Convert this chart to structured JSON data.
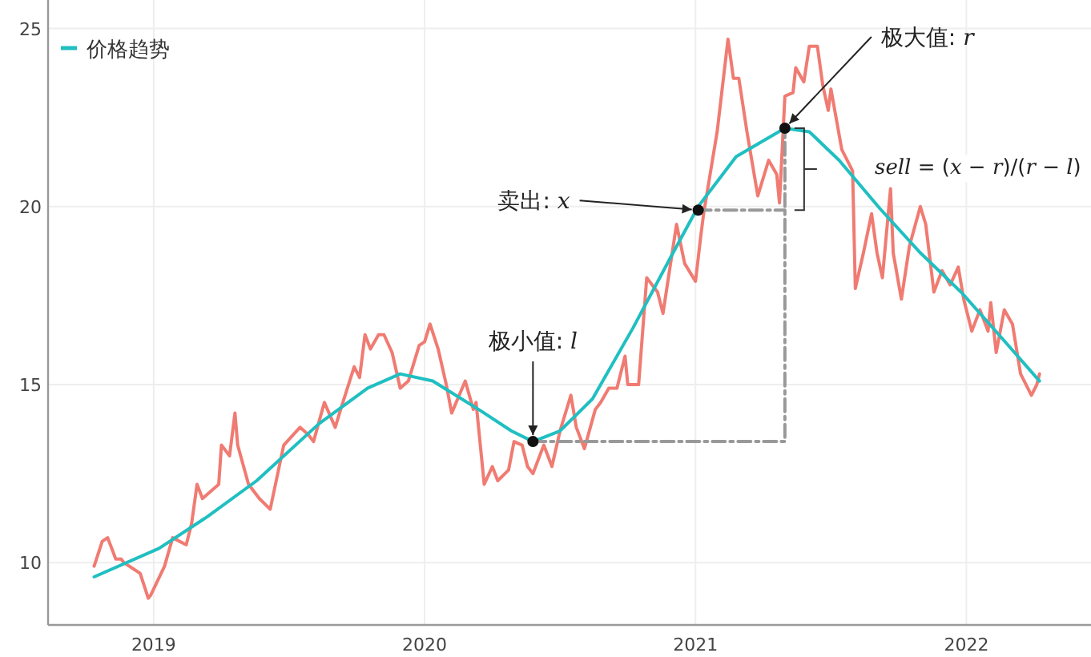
{
  "chart_data": {
    "type": "line",
    "xlim": [
      2018.61,
      2022.46
    ],
    "ylim": [
      8.25,
      25.8
    ],
    "xticks": [
      2019,
      2020,
      2021,
      2022
    ],
    "yticks": [
      10,
      15,
      20,
      25
    ],
    "grid": true,
    "legend": "top left",
    "series": [
      {
        "color": "#f07b72",
        "x": [
          2018.78,
          2018.81,
          2018.83,
          2018.86,
          2018.88,
          2018.89,
          2018.95,
          2018.98,
          2018.99,
          2019.04,
          2019.07,
          2019.12,
          2019.14,
          2019.16,
          2019.18,
          2019.24,
          2019.25,
          2019.28,
          2019.3,
          2019.31,
          2019.35,
          2019.39,
          2019.43,
          2019.48,
          2019.54,
          2019.57,
          2019.59,
          2019.63,
          2019.67,
          2019.69,
          2019.74,
          2019.76,
          2019.78,
          2019.8,
          2019.83,
          2019.85,
          2019.88,
          2019.91,
          2019.94,
          2019.98,
          2020.0,
          2020.02,
          2020.05,
          2020.08,
          2020.1,
          2020.15,
          2020.18,
          2020.19,
          2020.22,
          2020.25,
          2020.27,
          2020.31,
          2020.33,
          2020.36,
          2020.38,
          2020.4,
          2020.44,
          2020.47,
          2020.5,
          2020.54,
          2020.56,
          2020.59,
          2020.63,
          2020.65,
          2020.68,
          2020.71,
          2020.74,
          2020.75,
          2020.79,
          2020.82,
          2020.86,
          2020.88,
          2020.93,
          2020.96,
          2021.0,
          2021.02,
          2021.03,
          2021.08,
          2021.12,
          2021.14,
          2021.16,
          2021.19,
          2021.23,
          2021.27,
          2021.3,
          2021.31,
          2021.33,
          2021.36,
          2021.37,
          2021.4,
          2021.42,
          2021.45,
          2021.47,
          2021.49,
          2021.5,
          2021.54,
          2021.58,
          2021.59,
          2021.62,
          2021.65,
          2021.67,
          2021.69,
          2021.72,
          2021.73,
          2021.76,
          2021.79,
          2021.83,
          2021.85,
          2021.88,
          2021.91,
          2021.94,
          2021.97,
          2021.99,
          2022.02,
          2022.05,
          2022.08,
          2022.09,
          2022.11,
          2022.14,
          2022.17,
          2022.2,
          2022.24,
          2022.26,
          2022.27
        ],
        "values": [
          9.9,
          10.6,
          10.7,
          10.1,
          10.1,
          10.0,
          9.7,
          9.0,
          9.1,
          9.9,
          10.7,
          10.5,
          11.1,
          12.2,
          11.8,
          12.2,
          13.3,
          13.0,
          14.2,
          13.3,
          12.2,
          11.8,
          11.5,
          13.3,
          13.8,
          13.6,
          13.4,
          14.5,
          13.8,
          14.3,
          15.5,
          15.2,
          16.4,
          16.0,
          16.4,
          16.4,
          15.9,
          14.9,
          15.1,
          16.1,
          16.2,
          16.7,
          16.0,
          15.0,
          14.2,
          15.1,
          14.3,
          14.5,
          12.2,
          12.7,
          12.3,
          12.6,
          13.4,
          13.3,
          12.7,
          12.5,
          13.3,
          12.7,
          13.7,
          14.7,
          13.8,
          13.2,
          14.3,
          14.5,
          14.9,
          14.9,
          15.8,
          15.0,
          15.0,
          18.0,
          17.6,
          17.0,
          19.5,
          18.4,
          17.9,
          19.2,
          19.8,
          22.1,
          24.7,
          23.6,
          23.6,
          22.1,
          20.3,
          21.3,
          20.9,
          20.1,
          23.1,
          23.2,
          23.9,
          23.5,
          24.5,
          24.5,
          23.4,
          22.7,
          23.3,
          21.6,
          21.0,
          17.7,
          18.7,
          19.8,
          18.7,
          18.0,
          20.5,
          18.7,
          17.4,
          18.9,
          20.0,
          19.5,
          17.6,
          18.2,
          17.8,
          18.3,
          17.4,
          16.5,
          17.1,
          16.5,
          17.3,
          15.9,
          17.1,
          16.7,
          15.3,
          14.7,
          15.0,
          15.3
        ]
      },
      {
        "name": "价格趋势",
        "color": "#20bfc1",
        "x": [
          2018.78,
          2019.02,
          2019.2,
          2019.38,
          2019.61,
          2019.79,
          2019.91,
          2020.03,
          2020.2,
          2020.32,
          2020.4,
          2020.5,
          2020.62,
          2020.77,
          2020.91,
          2021.01,
          2021.15,
          2021.33,
          2021.42,
          2021.53,
          2021.68,
          2021.83,
          2021.98,
          2022.12,
          2022.27
        ],
        "values": [
          9.6,
          10.4,
          11.3,
          12.3,
          13.9,
          14.9,
          15.3,
          15.1,
          14.3,
          13.7,
          13.4,
          13.7,
          14.6,
          16.6,
          18.6,
          20.0,
          21.4,
          22.2,
          22.1,
          21.3,
          19.95,
          18.7,
          17.6,
          16.4,
          15.1
        ]
      },
      {
        "color": "#999999",
        "line_style": "dashed",
        "x": [
          2020.4,
          2021.33,
          2021.33
        ],
        "values": [
          13.4,
          13.4,
          22.2
        ]
      },
      {
        "color": "#999999",
        "line_style": "dashed",
        "x": [
          2021.01,
          2021.33
        ],
        "values": [
          19.9,
          19.9
        ]
      }
    ],
    "annotations": [
      {
        "text": "极小值: *l*",
        "x": 2020.4,
        "y": 13.4
      },
      {
        "text": "卖出: *x*",
        "x": 2021.01,
        "y": 19.9
      },
      {
        "text": "极大值: *r*",
        "x": 2021.33,
        "y": 22.2
      },
      "*sell* = (*x* − *r*)/(*r* − *l*)"
    ]
  }
}
